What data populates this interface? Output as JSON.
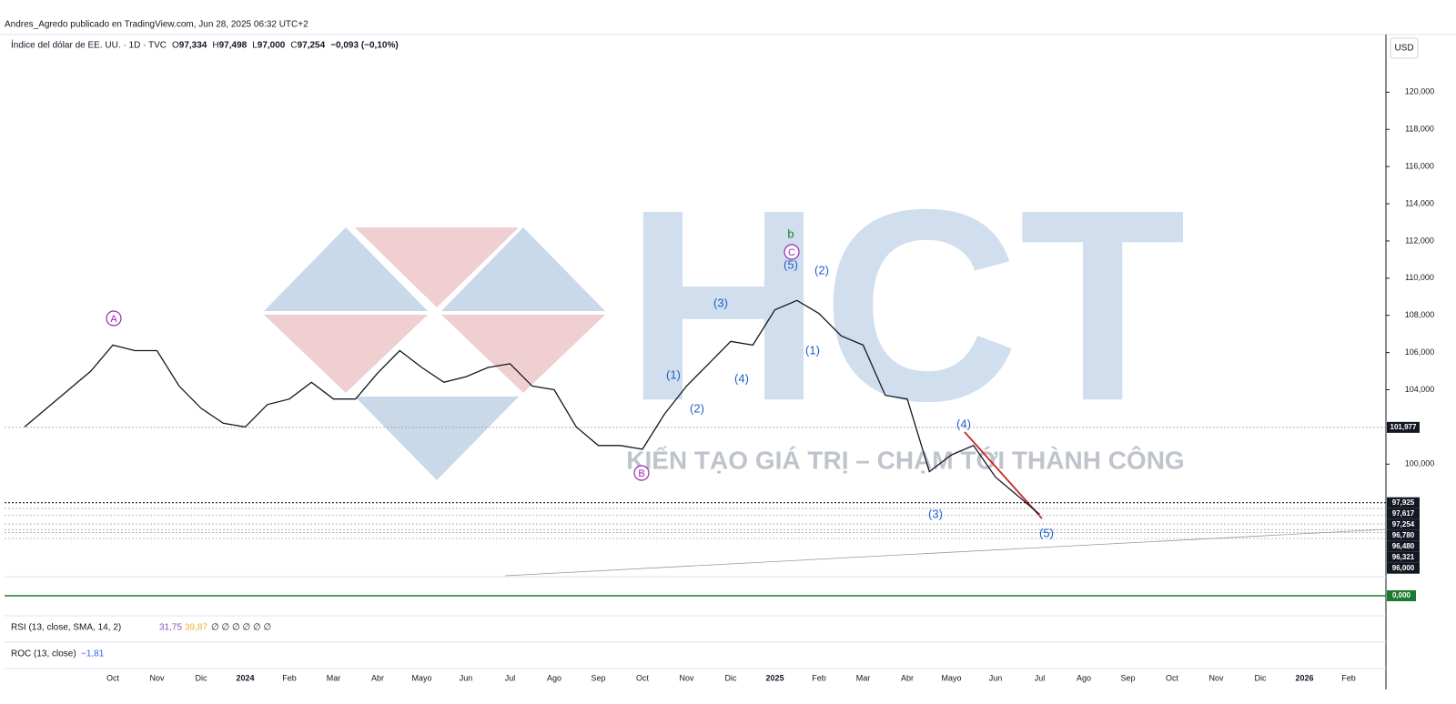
{
  "header": "Andres_Agredo publicado en TradingView.com, Jun 28, 2025 06:32 UTC+2",
  "chart_data": {
    "type": "line",
    "symbol": "Índice del dólar de EE. UU. · 1D · TVC",
    "ohlc": [
      {
        "label": "O",
        "value": "97,334"
      },
      {
        "label": "H",
        "value": "97,498"
      },
      {
        "label": "L",
        "value": "97,000"
      },
      {
        "label": "C",
        "value": "97,254"
      }
    ],
    "change": "−0,093 (−0,10%)",
    "currency": "USD",
    "color": "#131722",
    "categories": [
      null,
      null,
      null,
      null,
      "Oct",
      null,
      "Nov",
      null,
      "Dic",
      null,
      "2024",
      null,
      "Feb",
      null,
      "Mar",
      null,
      "Abr",
      null,
      "Mayo",
      null,
      "Jun",
      null,
      "Jul",
      null,
      "Ago",
      null,
      "Sep",
      null,
      "Oct",
      null,
      "Nov",
      null,
      "Dic",
      null,
      "2025",
      null,
      "Feb",
      null,
      "Mar",
      null,
      "Abr",
      null,
      "Mayo",
      null,
      "Jun",
      null,
      "Jul",
      null,
      "Ago",
      null,
      "Sep",
      null,
      "Oct",
      null,
      "Nov",
      null,
      "Dic",
      null,
      "2026",
      null,
      "Feb"
    ],
    "values": [
      102.0,
      103.0,
      104.0,
      105.0,
      106.4,
      106.1,
      106.1,
      104.2,
      103.0,
      102.2,
      102.0,
      103.2,
      103.5,
      104.4,
      103.5,
      103.5,
      104.9,
      106.1,
      105.2,
      104.4,
      104.7,
      105.2,
      105.4,
      104.2,
      104.0,
      102.0,
      101.0,
      101.0,
      100.8,
      102.7,
      104.2,
      105.4,
      106.6,
      106.4,
      108.3,
      108.8,
      108.1,
      106.9,
      106.4,
      103.7,
      103.5,
      99.6,
      100.5,
      101.0,
      99.3,
      98.3,
      97.3,
      null,
      null,
      null,
      null,
      null,
      null,
      null,
      null,
      null,
      null,
      null,
      null,
      null,
      null
    ],
    "ylim": [
      93.9,
      123
    ],
    "yticks": [
      {
        "value": 100,
        "label": "100,000"
      },
      {
        "value": 104,
        "label": "104,000"
      },
      {
        "value": 106,
        "label": "106,000"
      },
      {
        "value": 108,
        "label": "108,000"
      },
      {
        "value": 110,
        "label": "110,000"
      },
      {
        "value": 112,
        "label": "112,000"
      },
      {
        "value": 114,
        "label": "114,000"
      },
      {
        "value": 116,
        "label": "116,000"
      },
      {
        "value": 118,
        "label": "118,000"
      },
      {
        "value": 120,
        "label": "120,000"
      }
    ],
    "levels": [
      {
        "value": 101.977,
        "label": "101,977"
      },
      {
        "value": 97.925,
        "label": "97,925"
      },
      {
        "value": 97.617,
        "label": "97,617"
      },
      {
        "value": 97.254,
        "label": "97,254"
      },
      {
        "value": 96.78,
        "label": "96,780"
      },
      {
        "value": 96.48,
        "label": "96,480"
      },
      {
        "value": 96.321,
        "label": "96,321"
      },
      {
        "value": 96.0,
        "label": "96,000"
      }
    ],
    "annotations": [
      {
        "text": "A",
        "color": "#9c27b0",
        "circled": true
      },
      {
        "text": "B",
        "color": "#9c27b0",
        "circled": true
      },
      {
        "text": "C",
        "color": "#9c27b0",
        "circled": true
      },
      {
        "text": "b",
        "color": "#1b7a2f",
        "circled": false
      },
      {
        "text": "(5)",
        "color": "#1e5fcc",
        "circled": false
      },
      {
        "text": "(2)",
        "color": "#1e5fcc",
        "circled": false
      },
      {
        "text": "(3)",
        "color": "#1e5fcc",
        "circled": false
      },
      {
        "text": "(1)",
        "color": "#1e5fcc",
        "circled": false
      },
      {
        "text": "(2)",
        "color": "#1e5fcc",
        "circled": false
      },
      {
        "text": "(4)",
        "color": "#1e5fcc",
        "circled": false
      },
      {
        "text": "(1)",
        "color": "#1e5fcc",
        "circled": false
      },
      {
        "text": "(4)",
        "color": "#1e5fcc",
        "circled": false
      },
      {
        "text": "(3)",
        "color": "#1e5fcc",
        "circled": false
      },
      {
        "text": "(5)",
        "color": "#1e5fcc",
        "circled": false
      }
    ],
    "rsi": {
      "label": "RSI (13, close, SMA, 14, 2)",
      "value": "31,75",
      "signal": "39,87",
      "extra": "∅ ∅ ∅ ∅ ∅ ∅"
    },
    "roc": {
      "label": "ROC (13, close)",
      "value": "−1,81"
    },
    "zero_level": {
      "value": 0,
      "label": "0,000"
    }
  },
  "watermark": {
    "logo": "HCT",
    "tagline": "KIẾN TẠO GIÁ TRỊ – CHẠM TỚI THÀNH CÔNG"
  }
}
